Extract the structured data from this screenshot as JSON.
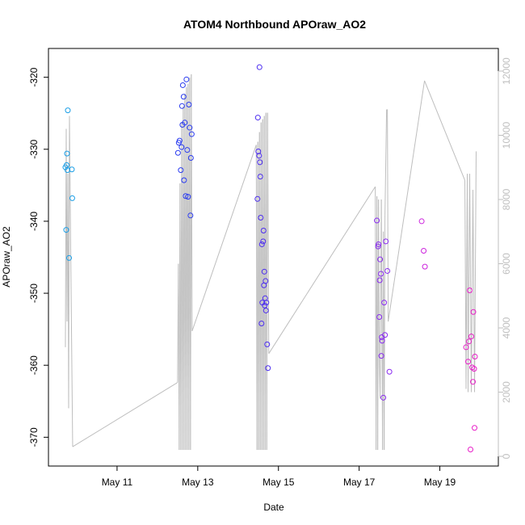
{
  "chart_data": {
    "type": "scatter",
    "title": "ATOM4 Northbound APOraw_AO2",
    "xlabel": "Date",
    "ylabel": "APOraw_AO2",
    "ylabel_right": "",
    "x_unit": "day of May (fractional)",
    "xlim": [
      9.3,
      20.45
    ],
    "ylim_left": [
      -374,
      -316
    ],
    "ylim_right": [
      0,
      12000
    ],
    "x_ticks": [
      {
        "value": 11,
        "label": "May 11"
      },
      {
        "value": 13,
        "label": "May 13"
      },
      {
        "value": 15,
        "label": "May 15"
      },
      {
        "value": 17,
        "label": "May 17"
      },
      {
        "value": 19,
        "label": "May 19"
      }
    ],
    "y_ticks_left": [
      {
        "value": -320,
        "label": "-320"
      },
      {
        "value": -330,
        "label": "-330"
      },
      {
        "value": -340,
        "label": "-340"
      },
      {
        "value": -350,
        "label": "-350"
      },
      {
        "value": -360,
        "label": "-360"
      },
      {
        "value": -370,
        "label": "-370"
      }
    ],
    "y_ticks_right": [
      {
        "value": 0,
        "label": "0"
      },
      {
        "value": 2000,
        "label": "2000"
      },
      {
        "value": 4000,
        "label": "4000"
      },
      {
        "value": 6000,
        "label": "6000"
      },
      {
        "value": 8000,
        "label": "8000"
      },
      {
        "value": 10000,
        "label": "10000"
      },
      {
        "value": 12000,
        "label": "12000"
      }
    ],
    "grid": false,
    "legend": "none",
    "colors": {
      "line": "#bebebe",
      "right_axis": "#bfbfbf",
      "group1": "#1a9ee6",
      "group2": "#2a3bf0",
      "group3": "#4b2cf0",
      "group4": "#8a2bf0",
      "group5": "#cc22dd",
      "group6": "#e81ec8"
    },
    "series": [
      {
        "color": "group1",
        "points": [
          [
            9.72,
            -332.5
          ],
          [
            9.75,
            -332.2
          ],
          [
            9.76,
            -330.6
          ],
          [
            9.77,
            -332.9
          ],
          [
            9.78,
            -324.6
          ],
          [
            9.88,
            -332.8
          ],
          [
            9.89,
            -336.8
          ],
          [
            9.74,
            -341.2
          ],
          [
            9.81,
            -345.1
          ]
        ]
      },
      {
        "color": "group2",
        "points": [
          [
            12.51,
            -330.5
          ],
          [
            12.53,
            -329.1
          ],
          [
            12.55,
            -328.8
          ],
          [
            12.58,
            -332.9
          ],
          [
            12.6,
            -329.7
          ],
          [
            12.61,
            -324.0
          ],
          [
            12.63,
            -321.1
          ],
          [
            12.65,
            -322.7
          ],
          [
            12.66,
            -334.3
          ],
          [
            12.68,
            -326.3
          ],
          [
            12.7,
            -336.5
          ],
          [
            12.72,
            -320.3
          ],
          [
            12.74,
            -330.1
          ],
          [
            12.76,
            -336.6
          ],
          [
            12.78,
            -323.8
          ],
          [
            12.8,
            -327.0
          ],
          [
            12.82,
            -339.2
          ],
          [
            12.83,
            -331.2
          ],
          [
            12.85,
            -327.9
          ],
          [
            12.62,
            -326.6
          ]
        ]
      },
      {
        "color": "group3",
        "points": [
          [
            14.48,
            -336.9
          ],
          [
            14.49,
            -325.6
          ],
          [
            14.5,
            -330.3
          ],
          [
            14.52,
            -330.9
          ],
          [
            14.53,
            -318.6
          ],
          [
            14.54,
            -331.8
          ],
          [
            14.55,
            -333.8
          ],
          [
            14.56,
            -339.5
          ],
          [
            14.58,
            -354.2
          ],
          [
            14.59,
            -343.2
          ],
          [
            14.6,
            -351.3
          ],
          [
            14.62,
            -342.8
          ],
          [
            14.63,
            -341.3
          ],
          [
            14.64,
            -348.9
          ],
          [
            14.65,
            -347.0
          ],
          [
            14.66,
            -351.7
          ],
          [
            14.67,
            -350.7
          ],
          [
            14.68,
            -348.3
          ],
          [
            14.69,
            -352.4
          ],
          [
            14.7,
            -351.3
          ],
          [
            14.72,
            -357.1
          ],
          [
            14.74,
            -360.4
          ]
        ]
      },
      {
        "color": "group4",
        "points": [
          [
            17.44,
            -339.9
          ],
          [
            17.47,
            -343.5
          ],
          [
            17.48,
            -343.2
          ],
          [
            17.5,
            -353.3
          ],
          [
            17.51,
            -348.2
          ],
          [
            17.52,
            -345.3
          ],
          [
            17.54,
            -347.3
          ],
          [
            17.55,
            -358.7
          ],
          [
            17.56,
            -356.1
          ],
          [
            17.57,
            -356.6
          ],
          [
            17.6,
            -364.5
          ],
          [
            17.62,
            -351.3
          ],
          [
            17.64,
            -355.8
          ],
          [
            17.66,
            -342.8
          ],
          [
            17.7,
            -346.9
          ],
          [
            17.75,
            -360.9
          ]
        ]
      },
      {
        "color": "group5",
        "points": [
          [
            18.55,
            -340.0
          ],
          [
            18.6,
            -344.1
          ],
          [
            18.63,
            -346.3
          ]
        ]
      },
      {
        "color": "group6",
        "points": [
          [
            19.65,
            -357.5
          ],
          [
            19.7,
            -359.5
          ],
          [
            19.72,
            -356.7
          ],
          [
            19.74,
            -349.6
          ],
          [
            19.76,
            -371.7
          ],
          [
            19.78,
            -356.0
          ],
          [
            19.8,
            -360.3
          ],
          [
            19.82,
            -362.3
          ],
          [
            19.83,
            -352.6
          ],
          [
            19.85,
            -360.5
          ],
          [
            19.86,
            -368.7
          ],
          [
            19.87,
            -358.8
          ]
        ]
      }
    ],
    "line_series": {
      "axis": "right",
      "points": [
        [
          9.72,
          3400
        ],
        [
          9.74,
          10200
        ],
        [
          9.76,
          4200
        ],
        [
          9.78,
          8800
        ],
        [
          9.8,
          1500
        ],
        [
          9.82,
          10600
        ],
        [
          9.84,
          7800
        ],
        [
          9.9,
          300
        ],
        [
          12.5,
          2300
        ],
        [
          12.52,
          6000
        ],
        [
          12.54,
          200
        ],
        [
          12.56,
          8500
        ],
        [
          12.58,
          200
        ],
        [
          12.6,
          10400
        ],
        [
          12.62,
          200
        ],
        [
          12.64,
          10900
        ],
        [
          12.66,
          200
        ],
        [
          12.68,
          11300
        ],
        [
          12.7,
          200
        ],
        [
          12.72,
          11500
        ],
        [
          12.74,
          200
        ],
        [
          12.76,
          11600
        ],
        [
          12.78,
          200
        ],
        [
          12.8,
          11800
        ],
        [
          12.82,
          200
        ],
        [
          12.84,
          11900
        ],
        [
          12.86,
          3900
        ],
        [
          14.45,
          9700
        ],
        [
          14.47,
          200
        ],
        [
          14.49,
          9800
        ],
        [
          14.51,
          200
        ],
        [
          14.53,
          10100
        ],
        [
          14.55,
          200
        ],
        [
          14.57,
          10400
        ],
        [
          14.59,
          200
        ],
        [
          14.61,
          10500
        ],
        [
          14.63,
          200
        ],
        [
          14.65,
          10600
        ],
        [
          14.67,
          200
        ],
        [
          14.69,
          10700
        ],
        [
          14.71,
          200
        ],
        [
          14.73,
          10700
        ],
        [
          14.76,
          3200
        ],
        [
          17.4,
          8400
        ],
        [
          17.42,
          200
        ],
        [
          17.44,
          8100
        ],
        [
          17.46,
          200
        ],
        [
          17.48,
          8000
        ],
        [
          17.5,
          3000
        ],
        [
          17.52,
          1800
        ],
        [
          17.55,
          8000
        ],
        [
          17.58,
          200
        ],
        [
          17.6,
          7000
        ],
        [
          17.62,
          200
        ],
        [
          17.64,
          7500
        ],
        [
          17.68,
          10800
        ],
        [
          17.7,
          10800
        ],
        [
          17.72,
          4200
        ],
        [
          18.62,
          11700
        ],
        [
          19.62,
          8600
        ],
        [
          19.65,
          2100
        ],
        [
          19.68,
          8800
        ],
        [
          19.7,
          2000
        ],
        [
          19.74,
          8800
        ],
        [
          19.78,
          2000
        ],
        [
          19.82,
          8300
        ],
        [
          19.86,
          2000
        ],
        [
          19.9,
          9500
        ]
      ]
    }
  }
}
